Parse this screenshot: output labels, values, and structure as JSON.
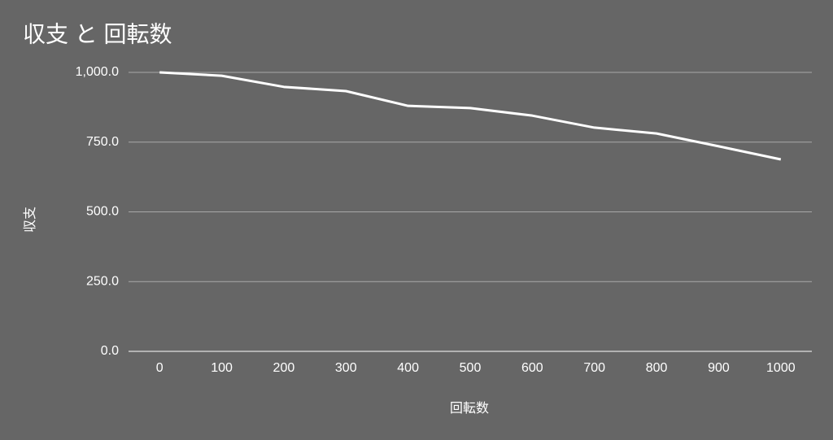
{
  "chart_data": {
    "type": "line",
    "title": "収支 と 回転数",
    "x_label": "回転数",
    "y_label": "収支",
    "x": [
      0,
      100,
      200,
      300,
      400,
      500,
      600,
      700,
      800,
      900,
      1000
    ],
    "series": [
      {
        "color": "#ffffff",
        "values": [
          1000,
          988,
          948,
          933,
          880,
          872,
          845,
          802,
          781,
          735,
          688
        ]
      }
    ],
    "xlim": [
      -50,
      1050
    ],
    "xticks": [
      0,
      100,
      200,
      300,
      400,
      500,
      600,
      700,
      800,
      900,
      1000
    ],
    "ylim": [
      0,
      1000
    ],
    "yticks": [
      {
        "value": 0,
        "label": "0.0"
      },
      {
        "value": 250,
        "label": "250.0"
      },
      {
        "value": 500,
        "label": "500.0"
      },
      {
        "value": 750,
        "label": "750.0"
      },
      {
        "value": 1000,
        "label": "1,000.0"
      }
    ],
    "grid": true
  }
}
